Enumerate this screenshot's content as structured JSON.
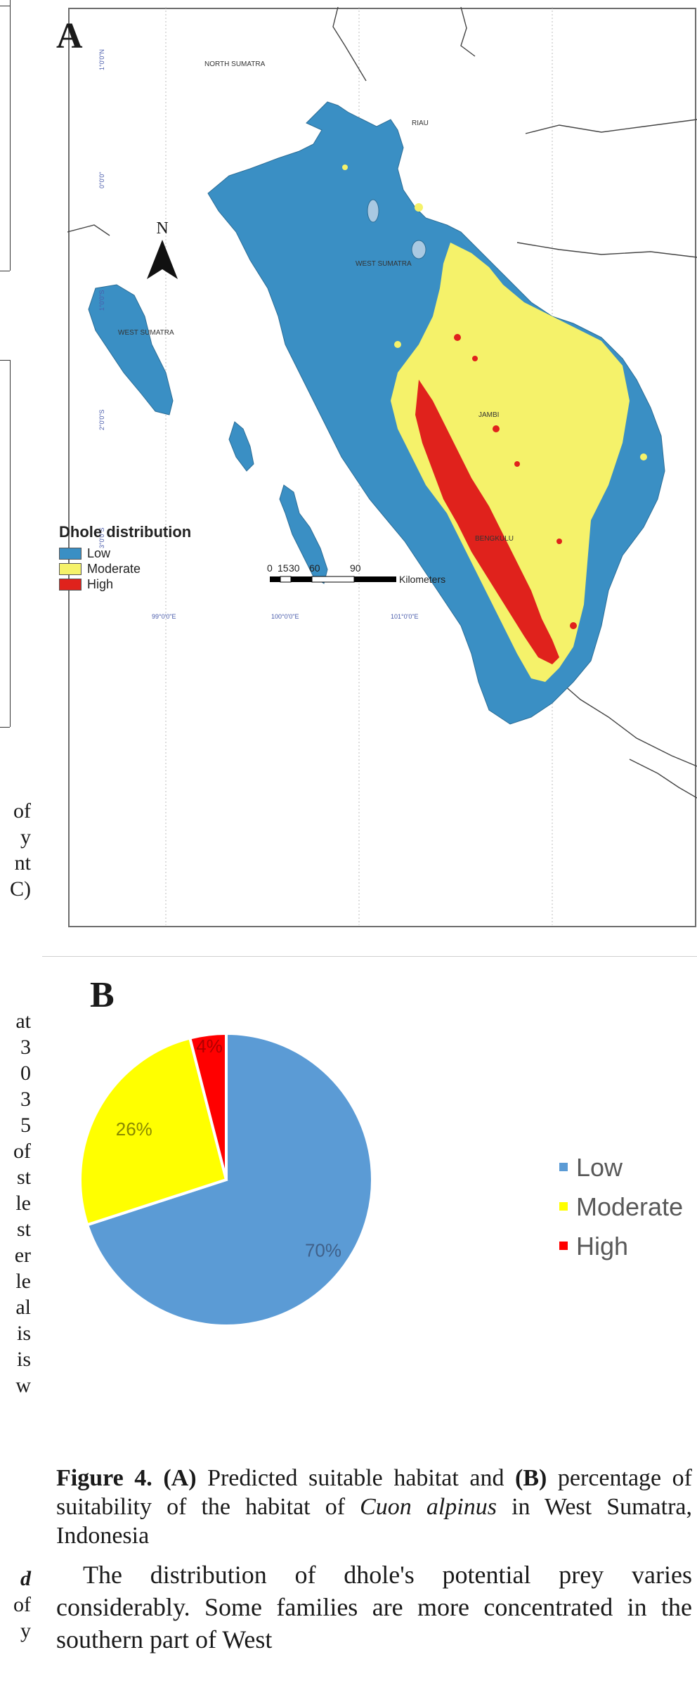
{
  "left_fragments": {
    "group1": [
      "of",
      "y",
      "nt",
      "C)"
    ],
    "group2": [
      "at",
      "3",
      "0",
      "3",
      "5",
      "of",
      "st",
      "le",
      "st",
      "er",
      "le",
      "al",
      "is",
      "is",
      "w"
    ],
    "group3": [
      "d",
      "of",
      "y"
    ]
  },
  "map": {
    "panel_label": "A",
    "region_labels": {
      "north_sumatra": "NORTH SUMATRA",
      "riau": "RIAU",
      "west_sumatra_main": "WEST SUMATRA",
      "west_sumatra_island": "WEST SUMATRA",
      "jambi": "JAMBI",
      "bengkulu": "BENGKULU"
    },
    "north_arrow_label": "N",
    "lat_labels": [
      "1°0'0\"N",
      "0°0'0\"",
      "1°0'0\"S",
      "2°0'0\"S",
      "3°0'0\"S"
    ],
    "lon_labels": [
      "99°0'0\"E",
      "100°0'0\"E",
      "101°0'0\"E"
    ],
    "legend": {
      "title": "Dhole distribution",
      "items": [
        {
          "label": "Low",
          "color": "#3a8fc4"
        },
        {
          "label": "Moderate",
          "color": "#f5f26a"
        },
        {
          "label": "High",
          "color": "#e0221c"
        }
      ]
    },
    "scale_bar": {
      "ticks": [
        "0",
        "15",
        "30",
        "60",
        "90"
      ],
      "unit": "Kilometers"
    }
  },
  "chart_data": {
    "type": "pie",
    "panel_label": "B",
    "categories": [
      "Low",
      "Moderate",
      "High"
    ],
    "values": [
      70,
      26,
      4
    ],
    "labels": [
      "70%",
      "26%",
      "4%"
    ],
    "colors": [
      "#5b9bd5",
      "#ffff00",
      "#ff0000"
    ],
    "legend_placement": "right"
  },
  "caption": {
    "label": "Figure 4.",
    "part_a": "(A)",
    "text_a": " Predicted suitable habitat and ",
    "part_b": "(B)",
    "text_b": " percentage of suitability of the habitat of ",
    "species": "Cuon alpinus",
    "text_end": " in West Sumatra, Indonesia"
  },
  "body_text": "The distribution of dhole's potential prey varies considerably. Some families are more concentrated in the southern part of West"
}
